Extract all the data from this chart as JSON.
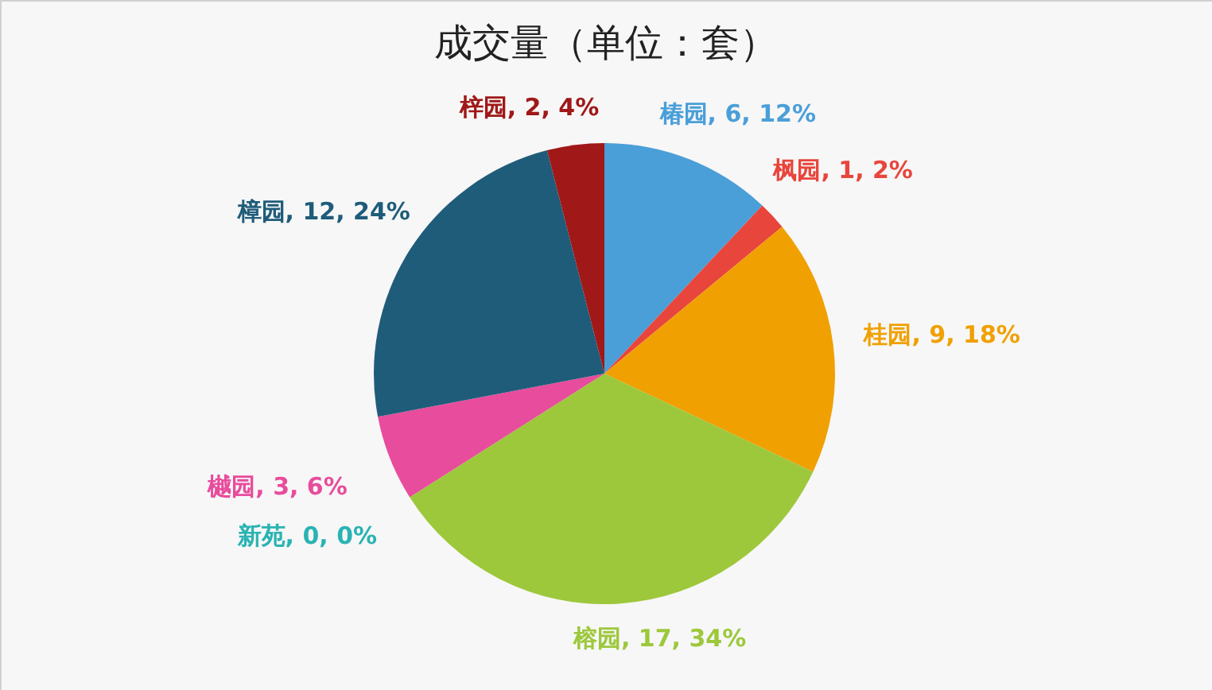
{
  "chart_data": {
    "type": "pie",
    "title": "成交量（单位：套）",
    "categories": [
      "椿园",
      "枫园",
      "桂园",
      "榕园",
      "新苑",
      "樾园",
      "樟园",
      "梓园"
    ],
    "values": [
      6,
      1,
      9,
      17,
      0,
      3,
      12,
      2
    ],
    "value_labels": [
      ", 6, 12%",
      ", 1, 2%",
      ", 9, 18%",
      ", 17, 34%",
      ", 0, 0%",
      ", 3, 6%",
      ", 12, 24%",
      ", 2, 4%"
    ],
    "colors": [
      "#4a9fd8",
      "#e8453c",
      "#f0a000",
      "#9dc83c",
      "#2ab3b3",
      "#e84c9c",
      "#1f5c7a",
      "#a01818"
    ],
    "legend": false
  }
}
